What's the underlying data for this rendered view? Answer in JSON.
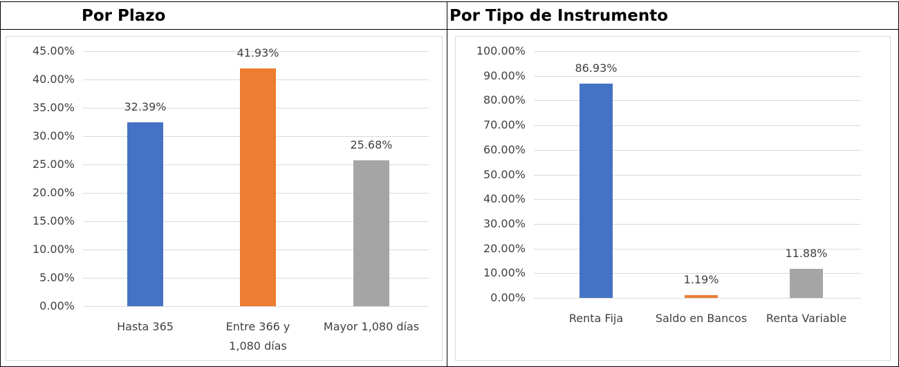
{
  "chart_data": [
    {
      "type": "bar",
      "title": "Por Plazo",
      "categories": [
        "Hasta 365",
        "Entre 366 y 1,080 días",
        "Mayor 1,080 días"
      ],
      "values": [
        32.39,
        41.93,
        25.68
      ],
      "value_labels": [
        "32.39%",
        "41.93%",
        "25.68%"
      ],
      "colors": [
        "#4472c4",
        "#ed7d31",
        "#a5a5a5"
      ],
      "ylim": [
        0,
        45
      ],
      "yticks": [
        {
          "value": 0,
          "label": "0.00%"
        },
        {
          "value": 5,
          "label": "5.00%"
        },
        {
          "value": 10,
          "label": "10.00%"
        },
        {
          "value": 15,
          "label": "15.00%"
        },
        {
          "value": 20,
          "label": "20.00%"
        },
        {
          "value": 25,
          "label": "25.00%"
        },
        {
          "value": 30,
          "label": "30.00%"
        },
        {
          "value": 35,
          "label": "35.00%"
        },
        {
          "value": 40,
          "label": "40.00%"
        },
        {
          "value": 45,
          "label": "45.00%"
        }
      ],
      "grid": true
    },
    {
      "type": "bar",
      "title": "Por Tipo de Instrumento",
      "categories": [
        "Renta Fija",
        "Saldo en Bancos",
        "Renta Variable"
      ],
      "values": [
        86.93,
        1.19,
        11.88
      ],
      "value_labels": [
        "86.93%",
        "1.19%",
        "11.88%"
      ],
      "colors": [
        "#4472c4",
        "#ed7d31",
        "#a5a5a5"
      ],
      "ylim": [
        0,
        100
      ],
      "yticks": [
        {
          "value": 0,
          "label": "0.00%"
        },
        {
          "value": 10,
          "label": "10.00%"
        },
        {
          "value": 20,
          "label": "20.00%"
        },
        {
          "value": 30,
          "label": "30.00%"
        },
        {
          "value": 40,
          "label": "40.00%"
        },
        {
          "value": 50,
          "label": "50.00%"
        },
        {
          "value": 60,
          "label": "60.00%"
        },
        {
          "value": 70,
          "label": "70.00%"
        },
        {
          "value": 80,
          "label": "80.00%"
        },
        {
          "value": 90,
          "label": "90.00%"
        },
        {
          "value": 100,
          "label": "100.00%"
        }
      ],
      "grid": true
    }
  ]
}
